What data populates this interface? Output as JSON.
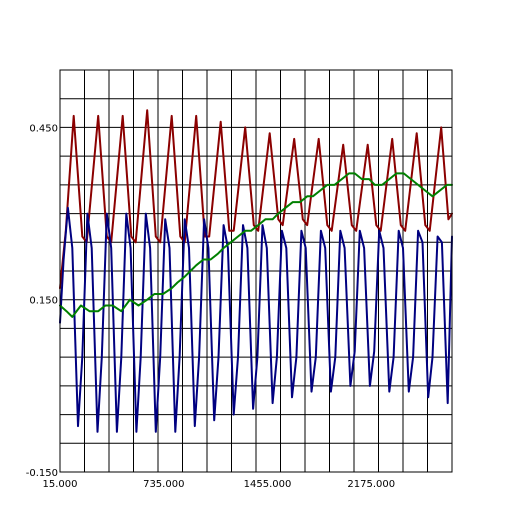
{
  "chart_data": {
    "type": "line",
    "title": "",
    "xlabel": "",
    "ylabel": "",
    "xlim": [
      15,
      2735
    ],
    "ylim": [
      -0.15,
      0.55
    ],
    "grid": true,
    "legend": "none",
    "x_ticks": [
      {
        "value": 15,
        "label": "15.000"
      },
      {
        "value": 735,
        "label": "735.000"
      },
      {
        "value": 1455,
        "label": "1455.000"
      },
      {
        "value": 2175,
        "label": "2175.000"
      }
    ],
    "y_ticks": [
      {
        "value": -0.15,
        "label": "-0.150"
      },
      {
        "value": 0.15,
        "label": "0.150"
      },
      {
        "value": 0.45,
        "label": "0.450"
      }
    ],
    "x_grid_step": 170,
    "y_grid_step": 0.05,
    "colors": {
      "plot_border": "#000000",
      "grid": "#000000"
    },
    "series": [
      {
        "color": "#8b0000",
        "points": [
          [
            15,
            0.17
          ],
          [
            55,
            0.27
          ],
          [
            110,
            0.47
          ],
          [
            170,
            0.26
          ],
          [
            200,
            0.25
          ],
          [
            280,
            0.47
          ],
          [
            340,
            0.26
          ],
          [
            370,
            0.25
          ],
          [
            450,
            0.47
          ],
          [
            510,
            0.26
          ],
          [
            540,
            0.25
          ],
          [
            620,
            0.48
          ],
          [
            680,
            0.26
          ],
          [
            710,
            0.25
          ],
          [
            790,
            0.47
          ],
          [
            850,
            0.26
          ],
          [
            880,
            0.25
          ],
          [
            960,
            0.47
          ],
          [
            1020,
            0.26
          ],
          [
            1050,
            0.26
          ],
          [
            1130,
            0.46
          ],
          [
            1190,
            0.27
          ],
          [
            1220,
            0.27
          ],
          [
            1300,
            0.45
          ],
          [
            1360,
            0.28
          ],
          [
            1390,
            0.27
          ],
          [
            1470,
            0.44
          ],
          [
            1530,
            0.29
          ],
          [
            1560,
            0.28
          ],
          [
            1640,
            0.43
          ],
          [
            1700,
            0.29
          ],
          [
            1730,
            0.28
          ],
          [
            1810,
            0.43
          ],
          [
            1870,
            0.28
          ],
          [
            1900,
            0.27
          ],
          [
            1980,
            0.42
          ],
          [
            2040,
            0.28
          ],
          [
            2070,
            0.27
          ],
          [
            2150,
            0.42
          ],
          [
            2210,
            0.28
          ],
          [
            2240,
            0.27
          ],
          [
            2320,
            0.43
          ],
          [
            2380,
            0.28
          ],
          [
            2410,
            0.27
          ],
          [
            2490,
            0.44
          ],
          [
            2550,
            0.28
          ],
          [
            2580,
            0.27
          ],
          [
            2660,
            0.45
          ],
          [
            2710,
            0.29
          ],
          [
            2735,
            0.3
          ]
        ]
      },
      {
        "color": "#000080",
        "points": [
          [
            15,
            0.11
          ],
          [
            40,
            0.22
          ],
          [
            70,
            0.31
          ],
          [
            100,
            0.24
          ],
          [
            140,
            -0.07
          ],
          [
            170,
            0.05
          ],
          [
            205,
            0.3
          ],
          [
            235,
            0.24
          ],
          [
            275,
            -0.08
          ],
          [
            305,
            0.05
          ],
          [
            340,
            0.3
          ],
          [
            370,
            0.24
          ],
          [
            410,
            -0.08
          ],
          [
            440,
            0.05
          ],
          [
            475,
            0.3
          ],
          [
            505,
            0.24
          ],
          [
            545,
            -0.08
          ],
          [
            575,
            0.05
          ],
          [
            610,
            0.3
          ],
          [
            640,
            0.24
          ],
          [
            680,
            -0.08
          ],
          [
            710,
            0.05
          ],
          [
            745,
            0.29
          ],
          [
            775,
            0.24
          ],
          [
            815,
            -0.08
          ],
          [
            845,
            0.05
          ],
          [
            880,
            0.29
          ],
          [
            910,
            0.24
          ],
          [
            950,
            -0.07
          ],
          [
            980,
            0.05
          ],
          [
            1015,
            0.29
          ],
          [
            1045,
            0.24
          ],
          [
            1085,
            -0.06
          ],
          [
            1115,
            0.05
          ],
          [
            1150,
            0.28
          ],
          [
            1180,
            0.24
          ],
          [
            1220,
            -0.05
          ],
          [
            1250,
            0.05
          ],
          [
            1285,
            0.28
          ],
          [
            1315,
            0.24
          ],
          [
            1355,
            -0.04
          ],
          [
            1385,
            0.05
          ],
          [
            1420,
            0.28
          ],
          [
            1450,
            0.24
          ],
          [
            1490,
            -0.03
          ],
          [
            1520,
            0.05
          ],
          [
            1555,
            0.27
          ],
          [
            1585,
            0.24
          ],
          [
            1625,
            -0.02
          ],
          [
            1655,
            0.05
          ],
          [
            1690,
            0.27
          ],
          [
            1720,
            0.24
          ],
          [
            1760,
            -0.01
          ],
          [
            1790,
            0.05
          ],
          [
            1825,
            0.27
          ],
          [
            1855,
            0.24
          ],
          [
            1895,
            -0.01
          ],
          [
            1925,
            0.05
          ],
          [
            1960,
            0.27
          ],
          [
            1990,
            0.24
          ],
          [
            2030,
            0.0
          ],
          [
            2060,
            0.06
          ],
          [
            2095,
            0.27
          ],
          [
            2125,
            0.24
          ],
          [
            2165,
            0.0
          ],
          [
            2195,
            0.06
          ],
          [
            2230,
            0.27
          ],
          [
            2260,
            0.24
          ],
          [
            2300,
            -0.01
          ],
          [
            2330,
            0.05
          ],
          [
            2365,
            0.27
          ],
          [
            2395,
            0.24
          ],
          [
            2435,
            -0.01
          ],
          [
            2465,
            0.05
          ],
          [
            2500,
            0.27
          ],
          [
            2530,
            0.25
          ],
          [
            2570,
            -0.02
          ],
          [
            2600,
            0.05
          ],
          [
            2635,
            0.26
          ],
          [
            2665,
            0.25
          ],
          [
            2705,
            -0.03
          ],
          [
            2735,
            0.26
          ]
        ]
      },
      {
        "color": "#008000",
        "points": [
          [
            15,
            0.14
          ],
          [
            60,
            0.13
          ],
          [
            100,
            0.12
          ],
          [
            160,
            0.14
          ],
          [
            220,
            0.13
          ],
          [
            280,
            0.13
          ],
          [
            330,
            0.14
          ],
          [
            380,
            0.14
          ],
          [
            440,
            0.13
          ],
          [
            500,
            0.15
          ],
          [
            560,
            0.14
          ],
          [
            620,
            0.15
          ],
          [
            670,
            0.16
          ],
          [
            730,
            0.16
          ],
          [
            790,
            0.17
          ],
          [
            830,
            0.18
          ],
          [
            880,
            0.19
          ],
          [
            920,
            0.2
          ],
          [
            960,
            0.21
          ],
          [
            1010,
            0.22
          ],
          [
            1060,
            0.22
          ],
          [
            1110,
            0.23
          ],
          [
            1150,
            0.24
          ],
          [
            1200,
            0.25
          ],
          [
            1250,
            0.26
          ],
          [
            1300,
            0.27
          ],
          [
            1340,
            0.27
          ],
          [
            1390,
            0.28
          ],
          [
            1440,
            0.29
          ],
          [
            1490,
            0.29
          ],
          [
            1530,
            0.3
          ],
          [
            1580,
            0.31
          ],
          [
            1630,
            0.32
          ],
          [
            1680,
            0.32
          ],
          [
            1730,
            0.33
          ],
          [
            1770,
            0.33
          ],
          [
            1820,
            0.34
          ],
          [
            1870,
            0.35
          ],
          [
            1920,
            0.35
          ],
          [
            1970,
            0.36
          ],
          [
            2020,
            0.37
          ],
          [
            2060,
            0.37
          ],
          [
            2110,
            0.36
          ],
          [
            2160,
            0.36
          ],
          [
            2200,
            0.35
          ],
          [
            2250,
            0.35
          ],
          [
            2300,
            0.36
          ],
          [
            2350,
            0.37
          ],
          [
            2400,
            0.37
          ],
          [
            2450,
            0.36
          ],
          [
            2500,
            0.35
          ],
          [
            2550,
            0.34
          ],
          [
            2600,
            0.33
          ],
          [
            2650,
            0.34
          ],
          [
            2700,
            0.35
          ],
          [
            2735,
            0.35
          ]
        ]
      }
    ]
  }
}
